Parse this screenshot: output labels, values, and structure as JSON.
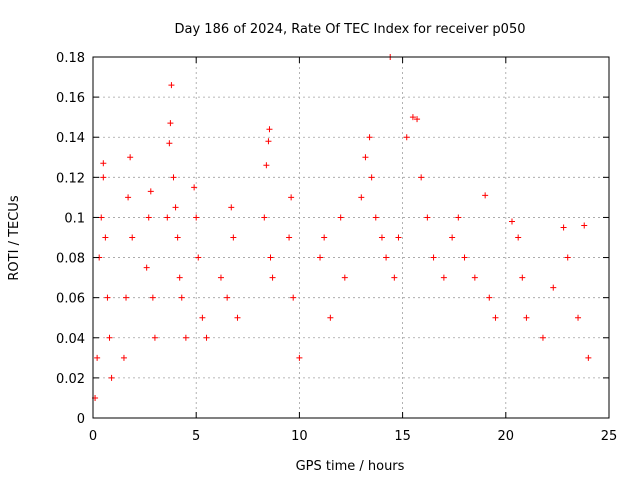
{
  "chart_data": {
    "type": "scatter",
    "title": "Day 186 of 2024, Rate Of TEC Index for receiver p050",
    "xlabel": "GPS time / hours",
    "ylabel": "ROTI / TECUs",
    "xlim": [
      0,
      25
    ],
    "ylim": [
      0,
      0.18
    ],
    "x_ticks": [
      0,
      5,
      10,
      15,
      20,
      25
    ],
    "x_tick_labels": [
      "0",
      "5",
      "10",
      "15",
      "20",
      "25"
    ],
    "y_ticks": [
      0,
      0.02,
      0.04,
      0.06,
      0.08,
      0.1,
      0.12,
      0.14,
      0.16,
      0.18
    ],
    "y_tick_labels": [
      "0",
      "0.02",
      "0.04",
      "0.06",
      "0.08",
      "0.1",
      "0.12",
      "0.14",
      "0.16",
      "0.18"
    ],
    "grid": true,
    "marker": "+",
    "color": "#ff0000",
    "series": [
      {
        "points": [
          [
            0.1,
            0.01
          ],
          [
            0.2,
            0.03
          ],
          [
            0.3,
            0.08
          ],
          [
            0.4,
            0.1
          ],
          [
            0.5,
            0.127
          ],
          [
            0.5,
            0.12
          ],
          [
            0.6,
            0.09
          ],
          [
            0.7,
            0.06
          ],
          [
            0.8,
            0.04
          ],
          [
            0.9,
            0.02
          ],
          [
            1.7,
            0.11
          ],
          [
            1.8,
            0.13
          ],
          [
            1.9,
            0.09
          ],
          [
            1.6,
            0.06
          ],
          [
            1.5,
            0.03
          ],
          [
            2.6,
            0.075
          ],
          [
            2.7,
            0.1
          ],
          [
            2.8,
            0.113
          ],
          [
            2.9,
            0.06
          ],
          [
            3.0,
            0.04
          ],
          [
            3.6,
            0.1
          ],
          [
            3.7,
            0.137
          ],
          [
            3.75,
            0.147
          ],
          [
            3.8,
            0.166
          ],
          [
            3.9,
            0.12
          ],
          [
            4.0,
            0.105
          ],
          [
            4.1,
            0.09
          ],
          [
            4.2,
            0.07
          ],
          [
            4.3,
            0.06
          ],
          [
            4.5,
            0.04
          ],
          [
            4.9,
            0.115
          ],
          [
            5.0,
            0.1
          ],
          [
            5.1,
            0.08
          ],
          [
            5.3,
            0.05
          ],
          [
            5.5,
            0.04
          ],
          [
            6.2,
            0.07
          ],
          [
            6.5,
            0.06
          ],
          [
            6.7,
            0.105
          ],
          [
            6.8,
            0.09
          ],
          [
            7.0,
            0.05
          ],
          [
            8.3,
            0.1
          ],
          [
            8.4,
            0.126
          ],
          [
            8.5,
            0.138
          ],
          [
            8.55,
            0.144
          ],
          [
            8.6,
            0.08
          ],
          [
            8.7,
            0.07
          ],
          [
            9.5,
            0.09
          ],
          [
            9.6,
            0.11
          ],
          [
            9.7,
            0.06
          ],
          [
            10.0,
            0.03
          ],
          [
            11.0,
            0.08
          ],
          [
            11.2,
            0.09
          ],
          [
            11.5,
            0.05
          ],
          [
            12.0,
            0.1
          ],
          [
            12.2,
            0.07
          ],
          [
            13.0,
            0.11
          ],
          [
            13.2,
            0.13
          ],
          [
            13.4,
            0.14
          ],
          [
            13.5,
            0.12
          ],
          [
            13.7,
            0.1
          ],
          [
            14.0,
            0.09
          ],
          [
            14.2,
            0.08
          ],
          [
            14.4,
            0.18
          ],
          [
            14.6,
            0.07
          ],
          [
            14.8,
            0.09
          ],
          [
            15.2,
            0.14
          ],
          [
            15.5,
            0.15
          ],
          [
            15.7,
            0.149
          ],
          [
            15.9,
            0.12
          ],
          [
            16.2,
            0.1
          ],
          [
            16.5,
            0.08
          ],
          [
            17.0,
            0.07
          ],
          [
            17.4,
            0.09
          ],
          [
            17.7,
            0.1
          ],
          [
            18.0,
            0.08
          ],
          [
            18.5,
            0.07
          ],
          [
            19.0,
            0.111
          ],
          [
            19.2,
            0.06
          ],
          [
            19.5,
            0.05
          ],
          [
            20.3,
            0.098
          ],
          [
            20.6,
            0.09
          ],
          [
            20.8,
            0.07
          ],
          [
            21.0,
            0.05
          ],
          [
            21.8,
            0.04
          ],
          [
            22.3,
            0.065
          ],
          [
            22.8,
            0.095
          ],
          [
            23.0,
            0.08
          ],
          [
            23.5,
            0.05
          ],
          [
            23.8,
            0.096
          ],
          [
            24.0,
            0.03
          ]
        ]
      }
    ]
  }
}
